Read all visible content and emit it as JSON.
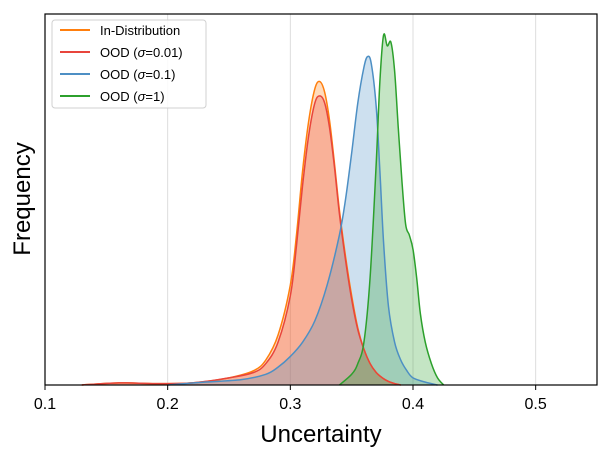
{
  "chart_data": {
    "type": "area",
    "title": "",
    "xlabel": "Uncertainty",
    "ylabel": "Frequency",
    "xlim": [
      0.1,
      0.55
    ],
    "ylim": [
      0,
      1.0
    ],
    "xticks": [
      0.1,
      0.2,
      0.3,
      0.4,
      0.5
    ],
    "xtick_labels": [
      "0.1",
      "0.2",
      "0.3",
      "0.4",
      "0.5"
    ],
    "grid": "vertical",
    "legend_position": "top-left",
    "series": [
      {
        "name": "In-Distribution",
        "legend_prefix": "In-Distribution",
        "legend_sigma": "",
        "legend_suffix": "",
        "color": "#ff7f0e",
        "x": [
          0.13,
          0.16,
          0.19,
          0.22,
          0.25,
          0.27,
          0.28,
          0.29,
          0.3,
          0.305,
          0.31,
          0.315,
          0.32,
          0.324,
          0.328,
          0.332,
          0.336,
          0.34,
          0.345,
          0.35,
          0.355,
          0.36,
          0.365,
          0.37,
          0.375,
          0.38,
          0.385,
          0.39
        ],
        "y": [
          0.0,
          0.006,
          0.004,
          0.006,
          0.02,
          0.04,
          0.07,
          0.14,
          0.28,
          0.42,
          0.6,
          0.74,
          0.83,
          0.85,
          0.82,
          0.74,
          0.62,
          0.49,
          0.36,
          0.25,
          0.16,
          0.1,
          0.06,
          0.035,
          0.02,
          0.01,
          0.004,
          0.0
        ]
      },
      {
        "name": "OOD (σ=0.01)",
        "legend_prefix": "OOD (",
        "legend_sigma": "σ",
        "legend_suffix": "=0.01)",
        "color": "#e8453c",
        "x": [
          0.13,
          0.16,
          0.19,
          0.22,
          0.25,
          0.27,
          0.28,
          0.29,
          0.3,
          0.305,
          0.31,
          0.315,
          0.32,
          0.324,
          0.328,
          0.332,
          0.336,
          0.34,
          0.345,
          0.35,
          0.355,
          0.36,
          0.365,
          0.37,
          0.375,
          0.38,
          0.385,
          0.39
        ],
        "y": [
          0.0,
          0.006,
          0.004,
          0.006,
          0.02,
          0.035,
          0.06,
          0.12,
          0.25,
          0.39,
          0.56,
          0.7,
          0.79,
          0.81,
          0.79,
          0.72,
          0.61,
          0.48,
          0.35,
          0.24,
          0.155,
          0.1,
          0.06,
          0.035,
          0.02,
          0.01,
          0.004,
          0.0
        ]
      },
      {
        "name": "OOD (σ=0.1)",
        "legend_prefix": "OOD (",
        "legend_sigma": "σ",
        "legend_suffix": "=0.1)",
        "color": "#4d8fc4",
        "x": [
          0.2,
          0.23,
          0.26,
          0.28,
          0.29,
          0.3,
          0.31,
          0.32,
          0.33,
          0.34,
          0.345,
          0.35,
          0.355,
          0.36,
          0.363,
          0.366,
          0.37,
          0.373,
          0.376,
          0.38,
          0.385,
          0.39,
          0.395,
          0.4,
          0.41,
          0.42
        ],
        "y": [
          0.0,
          0.008,
          0.015,
          0.03,
          0.05,
          0.08,
          0.12,
          0.18,
          0.28,
          0.42,
          0.52,
          0.65,
          0.79,
          0.89,
          0.92,
          0.9,
          0.78,
          0.6,
          0.4,
          0.22,
          0.12,
          0.07,
          0.04,
          0.02,
          0.008,
          0.0
        ]
      },
      {
        "name": "OOD (σ=1)",
        "legend_prefix": "OOD (",
        "legend_sigma": "σ",
        "legend_suffix": "=1)",
        "color": "#2ca02c",
        "x": [
          0.34,
          0.35,
          0.355,
          0.36,
          0.365,
          0.37,
          0.373,
          0.376,
          0.379,
          0.382,
          0.385,
          0.388,
          0.391,
          0.394,
          0.397,
          0.4,
          0.403,
          0.406,
          0.41,
          0.415,
          0.42,
          0.425
        ],
        "y": [
          0.0,
          0.03,
          0.06,
          0.12,
          0.3,
          0.62,
          0.85,
          0.98,
          0.95,
          0.96,
          0.88,
          0.72,
          0.57,
          0.45,
          0.42,
          0.38,
          0.3,
          0.2,
          0.12,
          0.06,
          0.02,
          0.0
        ]
      }
    ]
  }
}
